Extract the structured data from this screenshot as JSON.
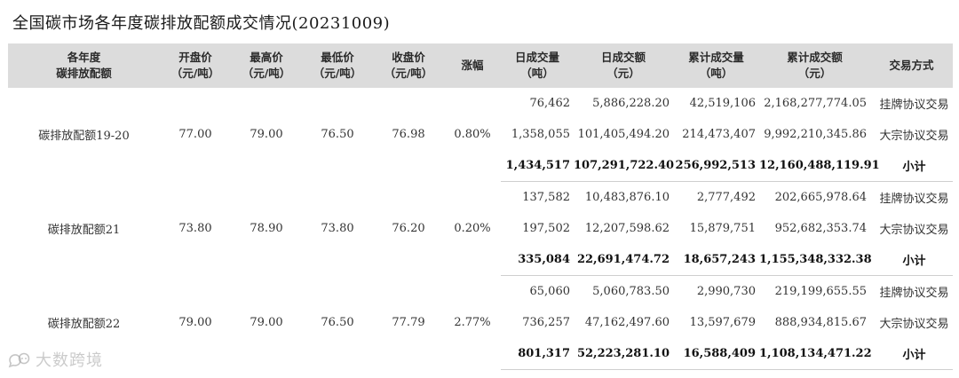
{
  "title": "全国碳市场各年度碳排放配额成交情况(20231009)",
  "headers": [
    [
      "各年度",
      "碳排放配额"
    ],
    [
      "开盘价",
      "（元/吨）"
    ],
    [
      "最高价",
      "（元/吨）"
    ],
    [
      "最低价",
      "（元/吨）"
    ],
    [
      "收盘价",
      "（元/吨）"
    ],
    [
      "涨幅"
    ],
    [
      "日成交量",
      "（吨）"
    ],
    [
      "日成交额",
      "（元）"
    ],
    [
      "累计成交量",
      "（吨）"
    ],
    [
      "累计成交额",
      "（元）"
    ],
    [
      "交易方式"
    ]
  ],
  "groups": [
    {
      "name": "碳排放配额19-20",
      "open": "77.00",
      "high": "79.00",
      "low": "76.50",
      "close": "76.98",
      "change": "0.80%",
      "rows": [
        {
          "daily_volume": "76,462",
          "daily_amount": "5,886,228.20",
          "cum_volume": "42,519,106",
          "cum_amount": "2,168,277,774.05",
          "method": "挂牌协议交易"
        },
        {
          "daily_volume": "1,358,055",
          "daily_amount": "101,405,494.20",
          "cum_volume": "214,473,407",
          "cum_amount": "9,992,210,345.86",
          "method": "大宗协议交易"
        },
        {
          "daily_volume": "1,434,517",
          "daily_amount": "107,291,722.40",
          "cum_volume": "256,992,513",
          "cum_amount": "12,160,488,119.91",
          "method": "小计"
        }
      ]
    },
    {
      "name": "碳排放配额21",
      "open": "73.80",
      "high": "78.90",
      "low": "73.80",
      "close": "76.20",
      "change": "0.20%",
      "rows": [
        {
          "daily_volume": "137,582",
          "daily_amount": "10,483,876.10",
          "cum_volume": "2,777,492",
          "cum_amount": "202,665,978.64",
          "method": "挂牌协议交易"
        },
        {
          "daily_volume": "197,502",
          "daily_amount": "12,207,598.62",
          "cum_volume": "15,879,751",
          "cum_amount": "952,682,353.74",
          "method": "大宗协议交易"
        },
        {
          "daily_volume": "335,084",
          "daily_amount": "22,691,474.72",
          "cum_volume": "18,657,243",
          "cum_amount": "1,155,348,332.38",
          "method": "小计"
        }
      ]
    },
    {
      "name": "碳排放配额22",
      "open": "79.00",
      "high": "79.00",
      "low": "76.50",
      "close": "77.79",
      "change": "2.77%",
      "rows": [
        {
          "daily_volume": "65,060",
          "daily_amount": "5,060,783.50",
          "cum_volume": "2,990,730",
          "cum_amount": "219,199,655.55",
          "method": "挂牌协议交易"
        },
        {
          "daily_volume": "736,257",
          "daily_amount": "47,162,497.60",
          "cum_volume": "13,597,679",
          "cum_amount": "888,934,815.67",
          "method": "大宗协议交易"
        },
        {
          "daily_volume": "801,317",
          "daily_amount": "52,223,281.10",
          "cum_volume": "16,588,409",
          "cum_amount": "1,108,134,471.22",
          "method": "小计"
        }
      ]
    }
  ],
  "watermark": {
    "text": "大数跨境",
    "logo_icon": "chat-bubbles-logo-icon"
  }
}
